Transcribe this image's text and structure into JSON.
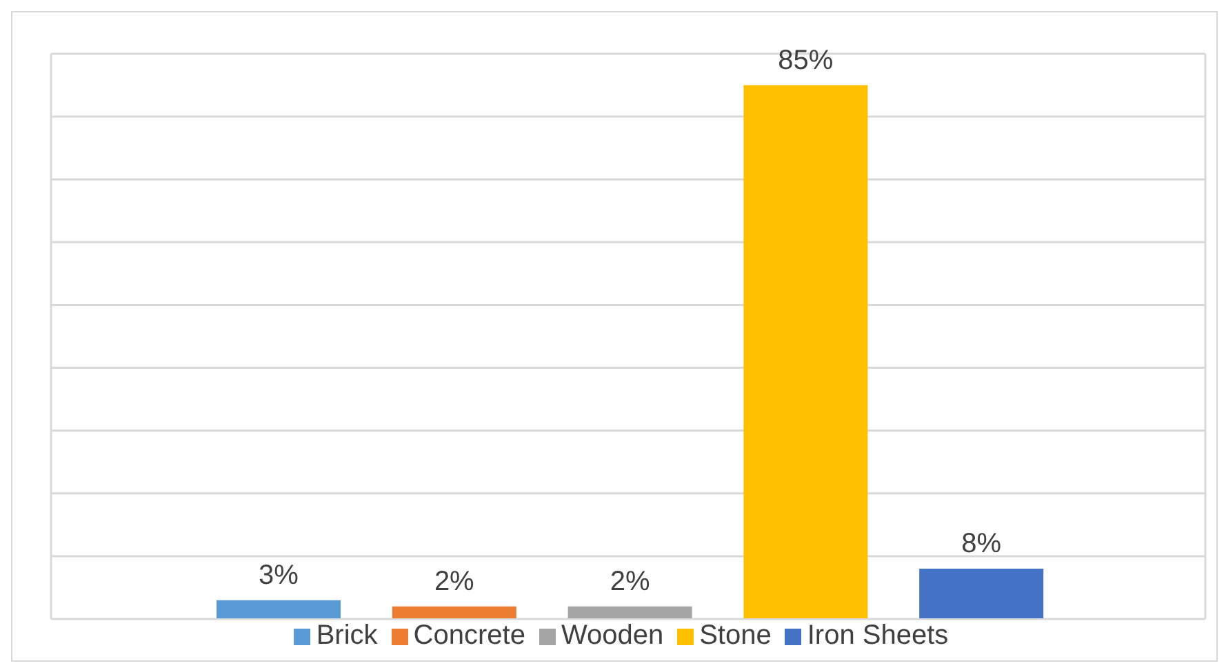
{
  "chart_data": {
    "type": "bar",
    "categories": [
      null,
      null,
      null,
      null,
      null
    ],
    "stacked": true,
    "series": [
      {
        "name": "Brick",
        "color": "#5b9bd5",
        "values": [
          3,
          null,
          null,
          null,
          null
        ],
        "value_labels": [
          "3%",
          null,
          null,
          null,
          null
        ]
      },
      {
        "name": "Concrete",
        "color": "#ed7d31",
        "values": [
          null,
          2,
          null,
          null,
          null
        ],
        "value_labels": [
          null,
          "2%",
          null,
          null,
          null
        ]
      },
      {
        "name": "Wooden",
        "color": "#a5a5a5",
        "values": [
          null,
          null,
          2,
          null,
          null
        ],
        "value_labels": [
          null,
          null,
          "2%",
          null,
          null
        ]
      },
      {
        "name": "Stone",
        "color": "#ffc000",
        "values": [
          null,
          null,
          null,
          85,
          null
        ],
        "value_labels": [
          null,
          null,
          null,
          "85%",
          null
        ]
      },
      {
        "name": "Iron Sheets",
        "color": "#4472c4",
        "values": [
          null,
          null,
          null,
          null,
          8
        ],
        "value_labels": [
          null,
          null,
          null,
          null,
          "8%"
        ]
      }
    ],
    "tick_labels": false,
    "grid": "y",
    "legend": "bottom"
  }
}
